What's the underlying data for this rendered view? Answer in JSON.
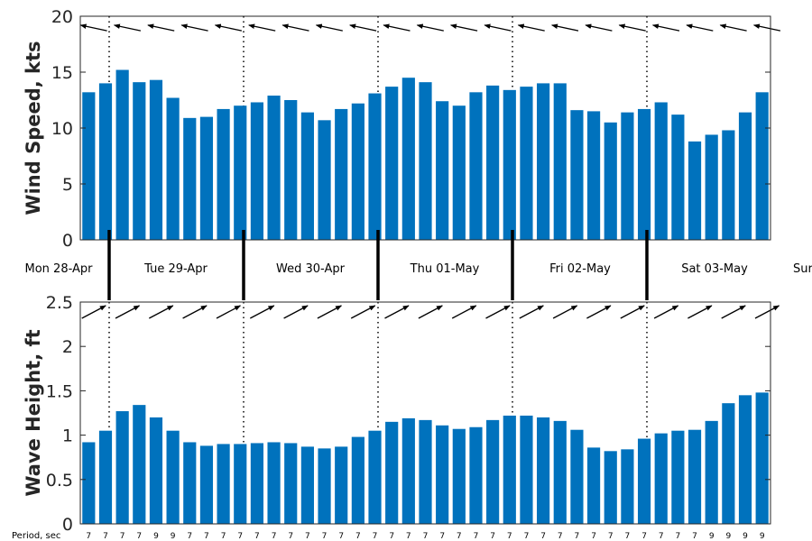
{
  "chart_data": [
    {
      "type": "bar",
      "ylabel": "Wind Speed, kts",
      "ylim": [
        0,
        20
      ],
      "yticks": [
        "0",
        "5",
        "10",
        "15",
        "20"
      ],
      "bar_color": "#0072BD",
      "direction_arrows": "above bars, pointing roughly west",
      "values": [
        13.2,
        14.0,
        15.2,
        14.1,
        14.3,
        12.7,
        10.9,
        11.0,
        11.7,
        12.0,
        12.3,
        12.9,
        12.5,
        11.4,
        10.7,
        11.7,
        12.2,
        13.1,
        13.7,
        14.5,
        14.1,
        12.4,
        12.0,
        13.2,
        13.8,
        13.4,
        13.7,
        14.0,
        14.0,
        11.6,
        11.5,
        10.5,
        11.4,
        11.7,
        12.3,
        11.2,
        8.8,
        9.4,
        9.8,
        11.4,
        13.2
      ]
    },
    {
      "type": "bar",
      "ylabel": "Wave Height, ft",
      "ylim": [
        0,
        2.5
      ],
      "yticks": [
        "0",
        "0.5",
        "1",
        "1.5",
        "2",
        "2.5"
      ],
      "bar_color": "#0072BD",
      "direction_arrows": "above bars, pointing northeast",
      "values": [
        0.92,
        1.05,
        1.27,
        1.34,
        1.2,
        1.05,
        0.92,
        0.88,
        0.9,
        0.9,
        0.91,
        0.92,
        0.91,
        0.87,
        0.85,
        0.87,
        0.98,
        1.05,
        1.15,
        1.19,
        1.17,
        1.11,
        1.07,
        1.09,
        1.17,
        1.22,
        1.22,
        1.2,
        1.16,
        1.06,
        0.86,
        0.82,
        0.84,
        0.96,
        1.02,
        1.05,
        1.06,
        1.16,
        1.36,
        1.45,
        1.48
      ],
      "period_label": "Period, sec",
      "periods": [
        "7",
        "7",
        "7",
        "7",
        "9",
        "9",
        "7",
        "7",
        "7",
        "7",
        "7",
        "7",
        "7",
        "7",
        "7",
        "7",
        "7",
        "7",
        "7",
        "7",
        "7",
        "7",
        "7",
        "7",
        "7",
        "7",
        "7",
        "7",
        "7",
        "7",
        "7",
        "7",
        "7",
        "7",
        "7",
        "7",
        "7",
        "9",
        "9",
        "9",
        "9"
      ]
    }
  ],
  "day_labels": [
    "Mon 28-Apr",
    "Tue 29-Apr",
    "Wed 30-Apr",
    "Thu 01-May",
    "Fri 02-May",
    "Sat 03-May",
    "Sur"
  ]
}
